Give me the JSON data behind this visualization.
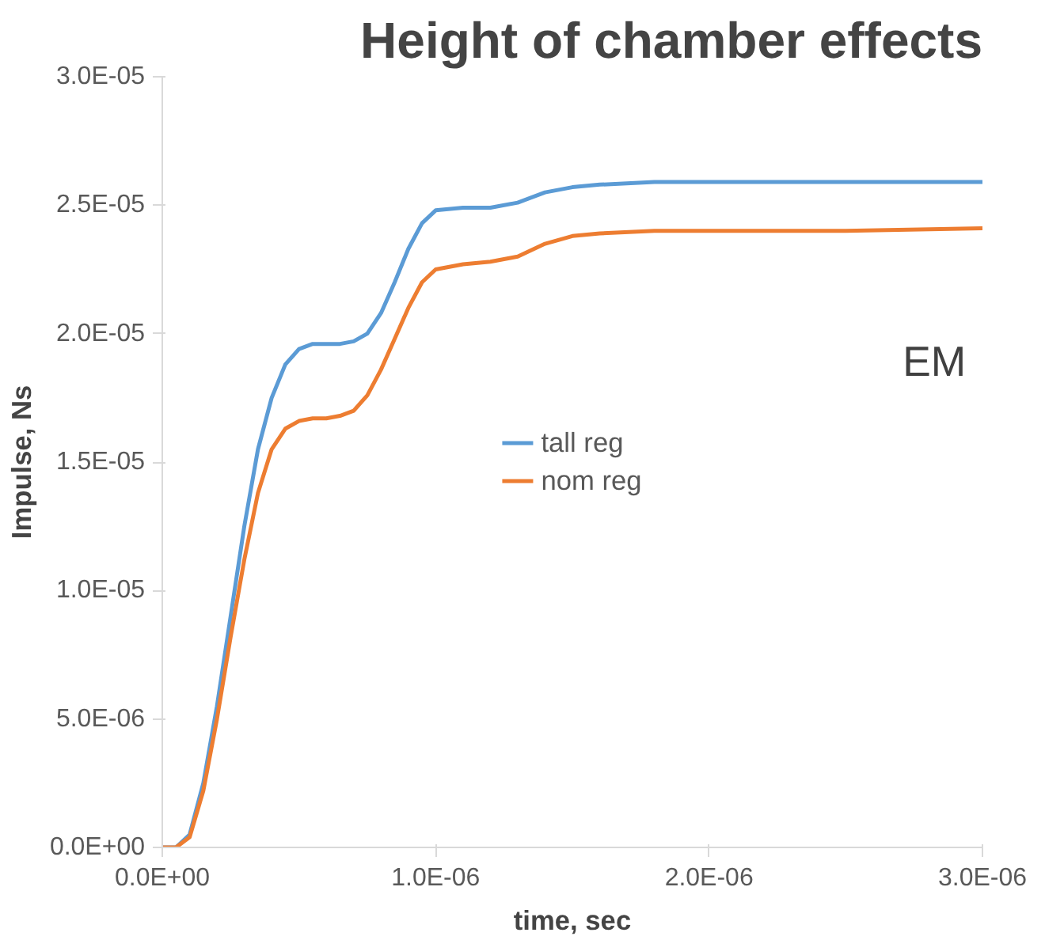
{
  "chart_data": {
    "type": "line",
    "title": "Height of chamber effects",
    "xlabel": "time, sec",
    "ylabel": "Impulse, Ns",
    "annotations": [
      "EM"
    ],
    "x": [
      0,
      5e-08,
      1e-07,
      1.5e-07,
      2e-07,
      2.5e-07,
      3e-07,
      3.5e-07,
      4e-07,
      4.5e-07,
      5e-07,
      5.5e-07,
      6e-07,
      6.5e-07,
      7e-07,
      7.5e-07,
      8e-07,
      8.5e-07,
      9e-07,
      9.5e-07,
      1e-06,
      1.1e-06,
      1.2e-06,
      1.3e-06,
      1.4e-06,
      1.5e-06,
      1.6e-06,
      1.8e-06,
      2e-06,
      2.5e-06,
      3e-06
    ],
    "series": [
      {
        "name": "tall reg",
        "color": "#5b9bd5",
        "values": [
          0,
          0,
          5e-07,
          2.5e-06,
          5.5e-06,
          9e-06,
          1.25e-05,
          1.55e-05,
          1.75e-05,
          1.88e-05,
          1.94e-05,
          1.96e-05,
          1.96e-05,
          1.96e-05,
          1.97e-05,
          2e-05,
          2.08e-05,
          2.2e-05,
          2.33e-05,
          2.43e-05,
          2.48e-05,
          2.49e-05,
          2.49e-05,
          2.51e-05,
          2.55e-05,
          2.57e-05,
          2.58e-05,
          2.59e-05,
          2.59e-05,
          2.59e-05,
          2.59e-05
        ]
      },
      {
        "name": "nom reg",
        "color": "#ed7d31",
        "values": [
          0,
          0,
          4e-07,
          2.2e-06,
          5e-06,
          8.2e-06,
          1.12e-05,
          1.38e-05,
          1.55e-05,
          1.63e-05,
          1.66e-05,
          1.67e-05,
          1.67e-05,
          1.68e-05,
          1.7e-05,
          1.76e-05,
          1.86e-05,
          1.98e-05,
          2.1e-05,
          2.2e-05,
          2.25e-05,
          2.27e-05,
          2.28e-05,
          2.3e-05,
          2.35e-05,
          2.38e-05,
          2.39e-05,
          2.4e-05,
          2.4e-05,
          2.4e-05,
          2.41e-05
        ]
      }
    ],
    "xlim": [
      0,
      3e-06
    ],
    "xticks": [
      {
        "value": 0,
        "label": "0.0E+00"
      },
      {
        "value": 1e-06,
        "label": "1.0E-06"
      },
      {
        "value": 2e-06,
        "label": "2.0E-06"
      },
      {
        "value": 3e-06,
        "label": "3.0E-06"
      }
    ],
    "ylim": [
      0,
      3e-05
    ],
    "yticks": [
      {
        "value": 0,
        "label": "0.0E+00"
      },
      {
        "value": 5e-06,
        "label": "5.0E-06"
      },
      {
        "value": 1e-05,
        "label": "1.0E-05"
      },
      {
        "value": 1.5e-05,
        "label": "1.5E-05"
      },
      {
        "value": 2e-05,
        "label": "2.0E-05"
      },
      {
        "value": 2.5e-05,
        "label": "2.5E-05"
      },
      {
        "value": 3e-05,
        "label": "3.0E-05"
      }
    ],
    "grid": false,
    "legend": "center",
    "marker": "none",
    "line_style": "solid"
  }
}
